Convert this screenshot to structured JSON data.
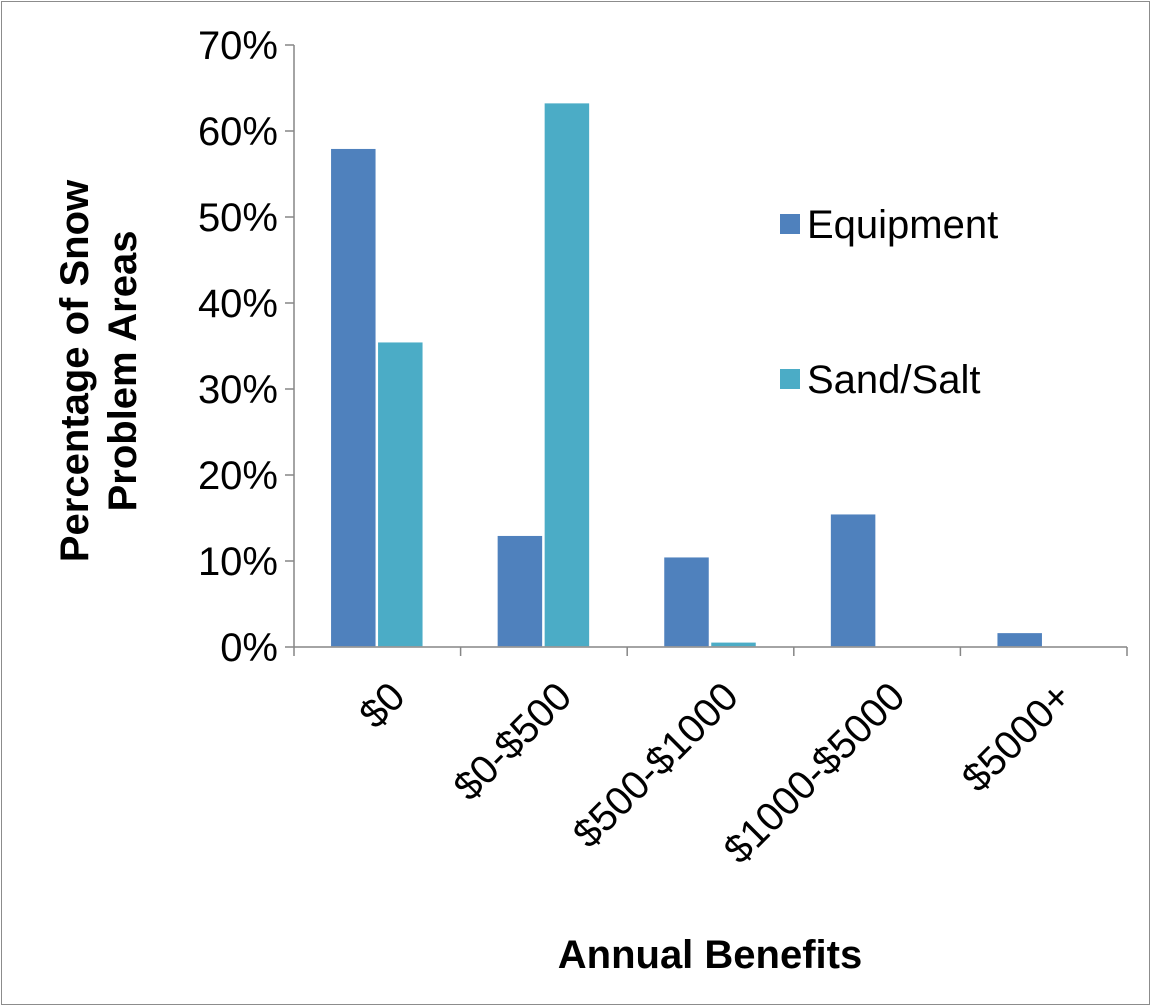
{
  "chart_data": {
    "type": "bar",
    "title": "",
    "xlabel": "Annual Benefits",
    "ylabel_lines": [
      "Percentage of Snow",
      "Problem Areas"
    ],
    "ylim": [
      0,
      70
    ],
    "yticks": [
      0,
      10,
      20,
      30,
      40,
      50,
      60,
      70
    ],
    "ytick_labels": [
      "0%",
      "10%",
      "20%",
      "30%",
      "40%",
      "50%",
      "60%",
      "70%"
    ],
    "categories": [
      "$0",
      "$0-$500",
      "$500-$1000",
      "$1000-$5000",
      "$5000+"
    ],
    "series": [
      {
        "name": "Equipment",
        "color": "#4f81bd",
        "values": [
          58,
          13,
          10.5,
          15.5,
          1.7
        ]
      },
      {
        "name": "Sand/Salt",
        "color": "#4bacc6",
        "values": [
          35.5,
          63.3,
          0.6,
          0,
          0
        ]
      }
    ],
    "legend_position": "right",
    "grid": false
  }
}
